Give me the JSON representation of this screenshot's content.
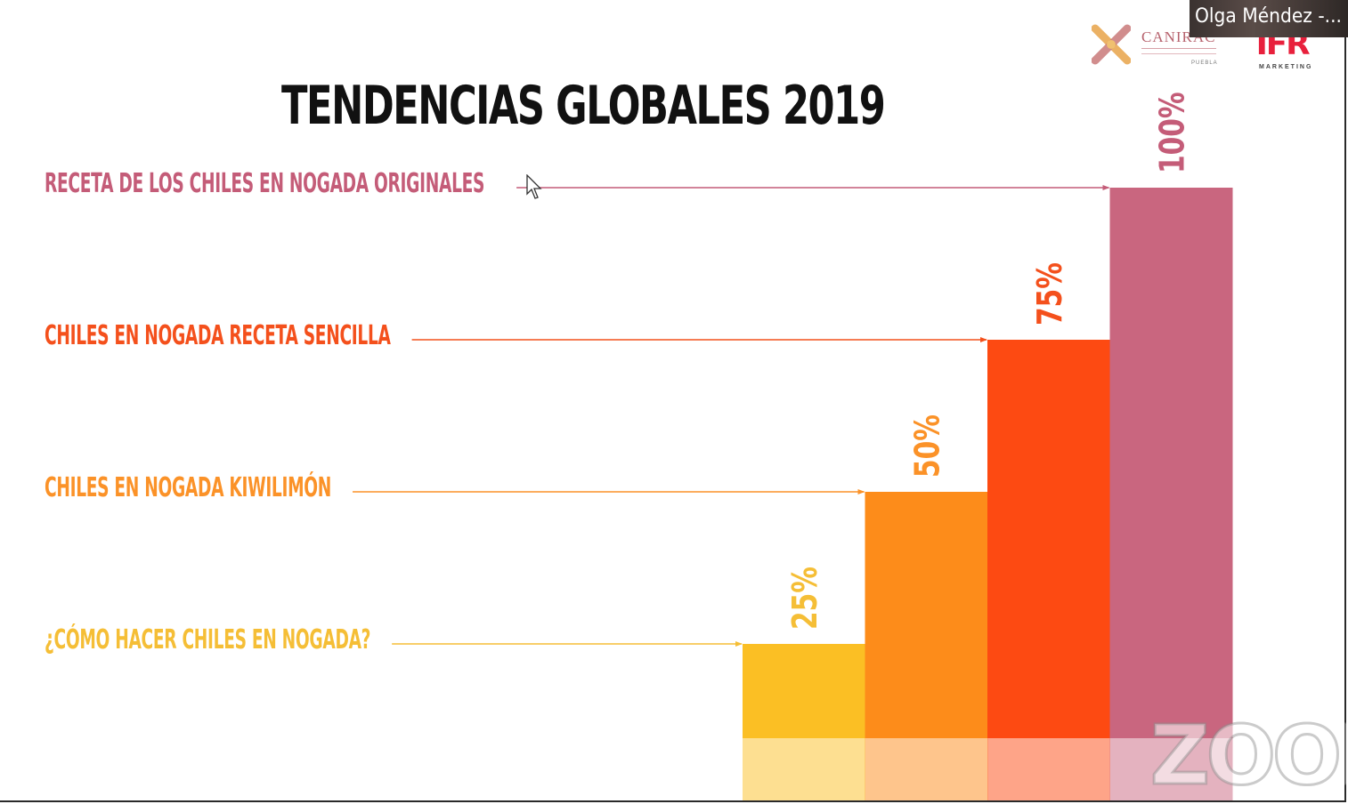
{
  "slide": {
    "title": "TENDENCIAS GLOBALES 2019"
  },
  "participant": {
    "name_tag": "Olga Méndez -..."
  },
  "logos": {
    "canirac": {
      "name": "CANIRAC",
      "city": "PUEBLA"
    },
    "ifr": {
      "name": "IFR",
      "tagline": "MARKETING"
    }
  },
  "watermark": {
    "text": "ZOOM"
  },
  "colors": {
    "title": "#111111",
    "series": [
      "#fbbf24",
      "#fd8c1a",
      "#fd4a12",
      "#c9667f"
    ],
    "labels": [
      "#f5be36",
      "#fb9228",
      "#f4501c",
      "#c45c78"
    ]
  },
  "chart_data": {
    "type": "bar",
    "title": "TENDENCIAS GLOBALES 2019",
    "xlabel": "",
    "ylabel": "",
    "ylim": [
      0,
      100
    ],
    "grid": false,
    "categories": [
      "¿CÓMO HACER CHILES EN NOGADA?",
      "CHILES EN NOGADA KIWILIMÓN",
      "CHILES EN NOGADA RECETA SENCILLA",
      "RECETA DE LOS CHILES EN NOGADA ORIGINALES"
    ],
    "values": [
      25,
      50,
      75,
      100
    ],
    "data_labels": [
      "25%",
      "50%",
      "75%",
      "100%"
    ]
  }
}
